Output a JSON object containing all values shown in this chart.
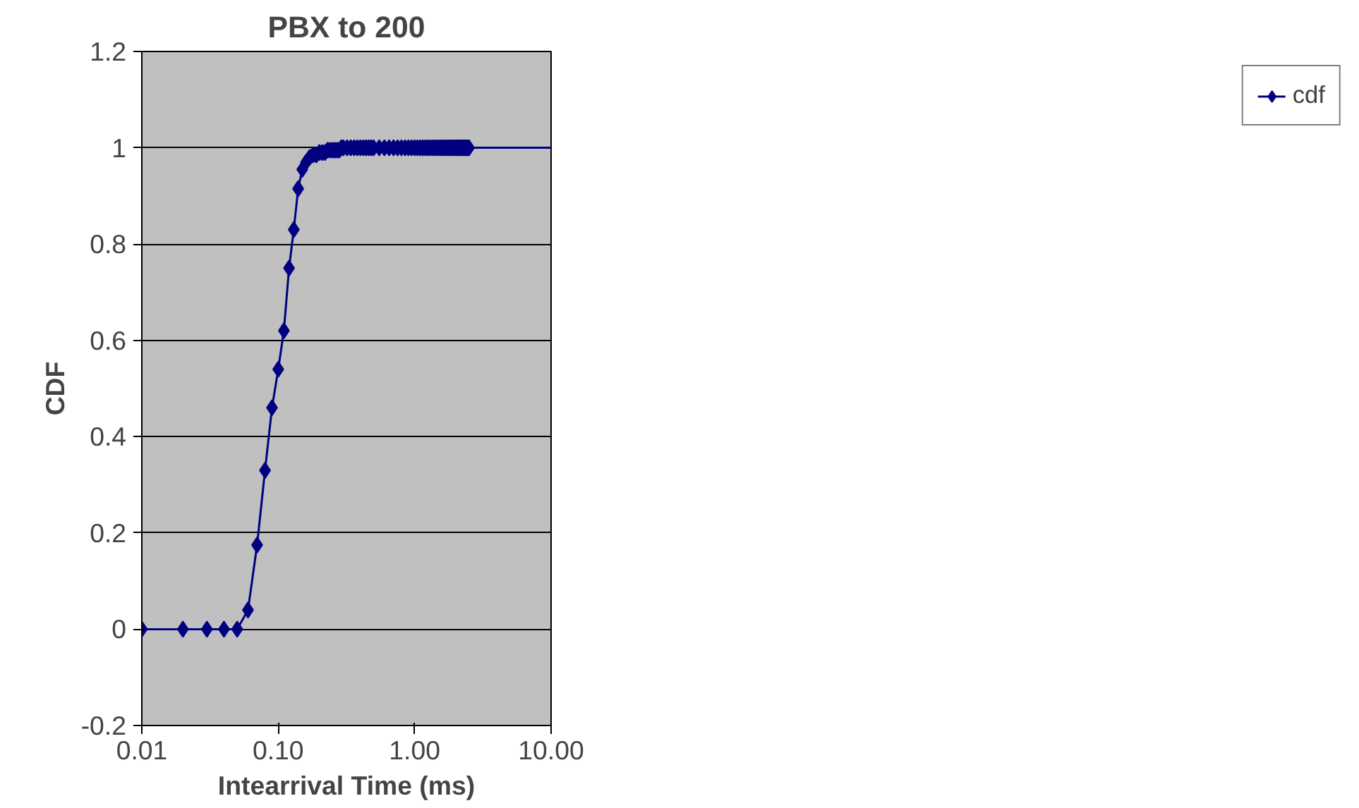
{
  "chart_data": {
    "type": "line",
    "title": "PBX to 200",
    "xlabel": "Intearrival Time (ms)",
    "ylabel": "CDF",
    "log": "x",
    "xlim": [
      0.01,
      10
    ],
    "xticks": [
      {
        "value": 0.01,
        "label": "0.01"
      },
      {
        "value": 0.1,
        "label": "0.10"
      },
      {
        "value": 1,
        "label": "1.00"
      },
      {
        "value": 10,
        "label": "10.00"
      }
    ],
    "ylim": [
      -0.2,
      1.2
    ],
    "yticks": [
      -0.2,
      0,
      0.2,
      0.4,
      0.6,
      0.8,
      1,
      1.2
    ],
    "grid": "y",
    "legend": "right",
    "marker": "diamond",
    "line_style": "solid",
    "series": [
      {
        "name": "cdf",
        "color": "#000080",
        "x": [
          0.01,
          0.02,
          0.03,
          0.04,
          0.05,
          0.06,
          0.07,
          0.08,
          0.09,
          0.1,
          0.11,
          0.12,
          0.13,
          0.14,
          0.15,
          0.16,
          0.17,
          0.18,
          0.19,
          0.2,
          0.21,
          0.22,
          0.23,
          0.24,
          0.25,
          0.26,
          0.27,
          0.28,
          0.29,
          0.3,
          0.32,
          0.34,
          0.36,
          0.38,
          0.4,
          0.42,
          0.44,
          0.46,
          0.48,
          0.5,
          0.55,
          0.6,
          0.65,
          0.7,
          0.75,
          0.8,
          0.85,
          0.9,
          0.95,
          1.0,
          1.05,
          1.1,
          1.15,
          1.2,
          1.25,
          1.3,
          1.35,
          1.4,
          1.45,
          1.5,
          1.55,
          1.6,
          1.65,
          1.7,
          1.75,
          1.8,
          1.85,
          1.9,
          1.95,
          2.0,
          2.05,
          2.1,
          2.15,
          2.2,
          2.25,
          2.3,
          2.35,
          2.4,
          2.45,
          2.5
        ],
        "values": [
          0,
          0,
          0,
          0,
          0,
          0.04,
          0.175,
          0.33,
          0.46,
          0.54,
          0.62,
          0.75,
          0.83,
          0.915,
          0.955,
          0.97,
          0.98,
          0.985,
          0.985,
          0.99,
          0.99,
          0.99,
          0.995,
          0.995,
          0.995,
          0.995,
          0.995,
          0.995,
          1,
          1,
          1,
          1,
          1,
          1,
          1,
          1,
          1,
          1,
          1,
          1,
          1,
          1,
          1,
          1,
          1,
          1,
          1,
          1,
          1,
          1,
          1,
          1,
          1,
          1,
          1,
          1,
          1,
          1,
          1,
          1,
          1,
          1,
          1,
          1,
          1,
          1,
          1,
          1,
          1,
          1,
          1,
          1,
          1,
          1,
          1,
          1,
          1,
          1,
          1,
          1
        ]
      },
      {
        "color": "#000080",
        "marker": "none",
        "x": [
          2.5,
          10
        ],
        "values": [
          1,
          1
        ]
      }
    ]
  }
}
